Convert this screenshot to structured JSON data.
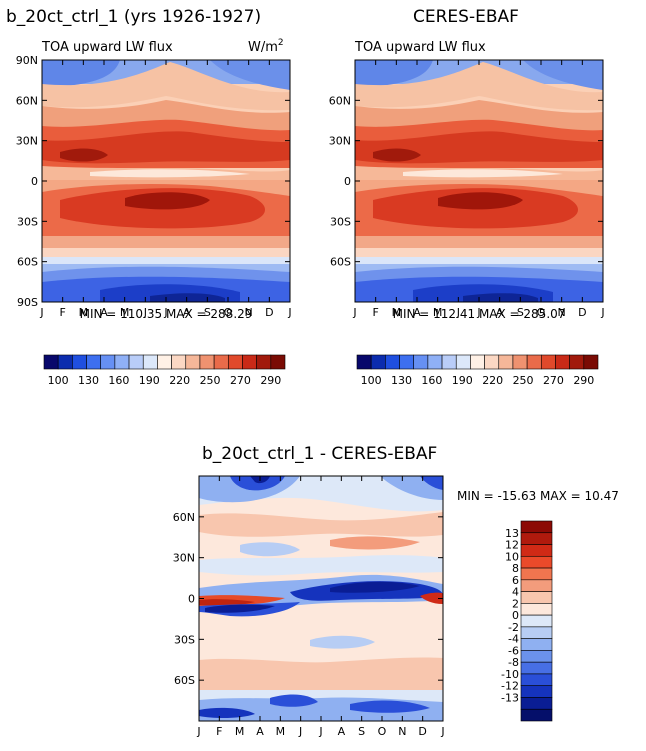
{
  "header": {
    "left_title": "b_20ct_ctrl_1 (yrs 1926-1927)",
    "right_title": "CERES-EBAF",
    "diff_title": "b_20ct_ctrl_1 - CERES-EBAF"
  },
  "chart_data": [
    {
      "type": "heatmap",
      "panel": "model",
      "subtitle": "TOA upward LW flux",
      "units": "W/m",
      "units_sup": "2",
      "x_ticks": [
        "J",
        "F",
        "M",
        "A",
        "M",
        "J",
        "J",
        "A",
        "S",
        "O",
        "N",
        "D",
        "J"
      ],
      "y_ticks": [
        "90N",
        "60N",
        "30N",
        "0",
        "30S",
        "60S",
        "90S"
      ],
      "y_values": [
        90,
        60,
        30,
        0,
        -30,
        -60,
        -90
      ],
      "xlim": [
        0,
        12
      ],
      "ylim": [
        -90,
        90
      ],
      "stats": "MIN = 110.35 MAX = 288.29",
      "min": 110.35,
      "max": 288.29,
      "colorbar": {
        "orientation": "horizontal",
        "labels": [
          "100",
          "130",
          "160",
          "190",
          "220",
          "250",
          "270",
          "290"
        ],
        "colors": [
          "#08086b",
          "#0b2cae",
          "#1f4fe0",
          "#3d6ff0",
          "#6690f4",
          "#8fb0f6",
          "#b9cdf8",
          "#dce8fa",
          "#fff1e6",
          "#fbd8c4",
          "#f5b799",
          "#ef9270",
          "#e96b4a",
          "#e0492b",
          "#c92a17",
          "#a11a0c",
          "#7a0b04"
        ]
      }
    },
    {
      "type": "heatmap",
      "panel": "observation",
      "subtitle": "TOA upward LW flux",
      "x_ticks": [
        "J",
        "F",
        "M",
        "A",
        "M",
        "J",
        "J",
        "A",
        "S",
        "O",
        "N",
        "D",
        "J"
      ],
      "y_ticks": [
        "60N",
        "30N",
        "0",
        "30S",
        "60S"
      ],
      "y_values": [
        60,
        30,
        0,
        -30,
        -60
      ],
      "xlim": [
        0,
        12
      ],
      "ylim": [
        -90,
        90
      ],
      "stats": "MIN = 112.41 MAX = 285.07",
      "min": 112.41,
      "max": 285.07,
      "colorbar": {
        "orientation": "horizontal",
        "labels": [
          "100",
          "130",
          "160",
          "190",
          "220",
          "250",
          "270",
          "290"
        ]
      }
    },
    {
      "type": "heatmap",
      "panel": "difference",
      "x_ticks": [
        "J",
        "F",
        "M",
        "A",
        "M",
        "J",
        "J",
        "A",
        "S",
        "O",
        "N",
        "D",
        "J"
      ],
      "y_ticks": [
        "60N",
        "30N",
        "0",
        "30S",
        "60S"
      ],
      "y_values": [
        60,
        30,
        0,
        -30,
        -60
      ],
      "xlim": [
        0,
        12
      ],
      "ylim": [
        -90,
        90
      ],
      "stats": "MIN = -15.63 MAX =  10.47",
      "min": -15.63,
      "max": 10.47,
      "colorbar": {
        "orientation": "vertical",
        "labels": [
          "13",
          "12",
          "10",
          "8",
          "6",
          "4",
          "2",
          "0",
          "-2",
          "-4",
          "-6",
          "-8",
          "-10",
          "-12",
          "-13"
        ],
        "colors": [
          "#8c0a05",
          "#b01a0d",
          "#d02a16",
          "#ea4a2a",
          "#f0754f",
          "#f39c7c",
          "#f8c6ae",
          "#fde8dc",
          "#dde8f8",
          "#b7cdf4",
          "#8fb0f1",
          "#6b92ec",
          "#476fe5",
          "#2a4fd8",
          "#1533bd",
          "#0a1d94",
          "#050f6a"
        ]
      }
    }
  ]
}
